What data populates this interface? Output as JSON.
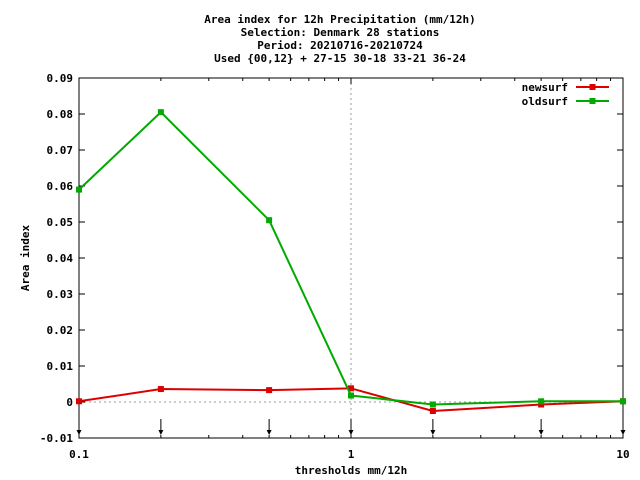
{
  "chart_data": {
    "type": "line",
    "title_lines": [
      "Area index  for 12h Precipitation (mm/12h)",
      "Selection: Denmark     28 stations",
      "Period: 20210716-20210724",
      "Used {00,12} + 27-15 30-18 33-21 36-24"
    ],
    "xlabel": "thresholds mm/12h",
    "ylabel": "Area index",
    "x_scale": "log",
    "xlim": [
      0.1,
      10
    ],
    "ylim": [
      -0.01,
      0.09
    ],
    "x_ticks": [
      0.1,
      1,
      10
    ],
    "x_tick_labels": [
      "0.1",
      "1",
      "10"
    ],
    "y_ticks": [
      -0.01,
      0,
      0.01,
      0.02,
      0.03,
      0.04,
      0.05,
      0.06,
      0.07,
      0.08,
      0.09
    ],
    "y_tick_labels": [
      "-0.01",
      "0",
      "0.01",
      "0.02",
      "0.03",
      "0.04",
      "0.05",
      "0.06",
      "0.07",
      "0.08",
      "0.09"
    ],
    "grid": "dotted lines at x=1 and y=0",
    "legend_position": "top-right",
    "threshold_markers": [
      0.1,
      0.2,
      0.5,
      1,
      2,
      5,
      10
    ],
    "x": [
      0.1,
      0.2,
      0.5,
      1,
      2,
      5,
      10
    ],
    "series": [
      {
        "name": "newsurf",
        "color": "#dd0000",
        "values": [
          0.0002,
          0.0036,
          0.0033,
          0.0038,
          -0.0025,
          -0.0007,
          0.0002
        ]
      },
      {
        "name": "oldsurf",
        "color": "#00aa00",
        "values": [
          0.059,
          0.0805,
          0.0505,
          0.0018,
          -0.0007,
          0.0002,
          0.0002
        ]
      }
    ]
  }
}
